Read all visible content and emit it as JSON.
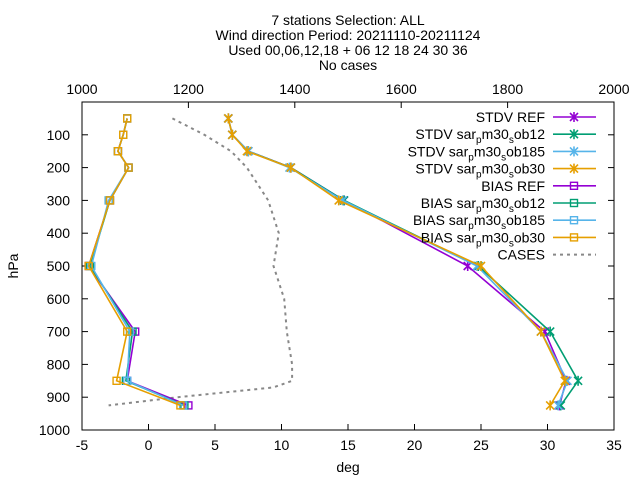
{
  "chart_data": {
    "type": "line",
    "title_lines": [
      "7 stations Selection: ALL",
      "Wind direction  Period: 20211110-20211124",
      "Used 00,06,12,18 + 06 12 18 24 30 36",
      "No cases"
    ],
    "xlabel": "deg",
    "ylabel": "hPa",
    "xlim": [
      -5,
      35
    ],
    "x_ticks": [
      "-5",
      "0",
      "5",
      "10",
      "15",
      "20",
      "25",
      "30",
      "35"
    ],
    "x2lim": [
      1000,
      2000
    ],
    "x2_ticks": [
      "1000",
      "1200",
      "1400",
      "1600",
      "1800",
      "2000"
    ],
    "ylim": [
      1000,
      0
    ],
    "y_reversed": true,
    "y_ticks": [
      "100",
      "200",
      "300",
      "400",
      "500",
      "600",
      "700",
      "800",
      "900",
      "1000"
    ],
    "grid": false,
    "legend_position": "top-right",
    "levels": [
      50,
      100,
      150,
      200,
      300,
      500,
      700,
      850,
      925
    ],
    "series": [
      {
        "name": "STDV REF",
        "legend": [
          "STDV REF"
        ],
        "color": "#9400d3",
        "marker": "x-star",
        "values": [
          6.0,
          6.3,
          7.5,
          10.7,
          14.7,
          24.0,
          29.8,
          31.4,
          30.9
        ]
      },
      {
        "name": "STDV sar_pm30_sob12",
        "legend": [
          "STDV sar",
          "p",
          "m30",
          "s",
          "ob12"
        ],
        "color": "#009e73",
        "marker": "x-star",
        "values": [
          6.0,
          6.3,
          7.5,
          10.7,
          14.7,
          24.8,
          30.2,
          32.3,
          31.0
        ]
      },
      {
        "name": "STDV sar_pm30_sob185",
        "legend": [
          "STDV sar",
          "p",
          "m30",
          "s",
          "ob185"
        ],
        "color": "#56b4e9",
        "marker": "x-star",
        "values": [
          6.0,
          6.3,
          7.5,
          10.6,
          14.6,
          24.7,
          29.5,
          31.5,
          30.8
        ]
      },
      {
        "name": "STDV sar_pm30_sob30",
        "legend": [
          "STDV sar",
          "p",
          "m30",
          "s",
          "ob30"
        ],
        "color": "#e69f00",
        "marker": "x-star",
        "values": [
          6.0,
          6.3,
          7.4,
          10.7,
          14.3,
          25.0,
          29.5,
          31.3,
          30.2
        ]
      },
      {
        "name": "BIAS REF",
        "legend": [
          "BIAS REF"
        ],
        "color": "#9400d3",
        "marker": "square",
        "values": [
          -1.6,
          -1.9,
          -2.3,
          -1.5,
          -2.9,
          -4.5,
          -1.0,
          -1.6,
          3.0
        ]
      },
      {
        "name": "BIAS sar_pm30_sob12",
        "legend": [
          "BIAS sar",
          "p",
          "m30",
          "s",
          "ob12"
        ],
        "color": "#009e73",
        "marker": "square",
        "values": [
          -1.6,
          -1.9,
          -2.3,
          -1.5,
          -2.9,
          -4.4,
          -1.2,
          -1.7,
          2.7
        ]
      },
      {
        "name": "BIAS sar_pm30_sob185",
        "legend": [
          "BIAS sar",
          "p",
          "m30",
          "s",
          "ob185"
        ],
        "color": "#56b4e9",
        "marker": "square",
        "values": [
          -1.6,
          -1.9,
          -2.3,
          -1.5,
          -3.0,
          -4.3,
          -1.4,
          -1.6,
          2.6
        ]
      },
      {
        "name": "BIAS sar_pm30_sob30",
        "legend": [
          "BIAS sar",
          "p",
          "m30",
          "s",
          "ob30"
        ],
        "color": "#e69f00",
        "marker": "square",
        "values": [
          -1.6,
          -1.9,
          -2.3,
          -1.5,
          -2.9,
          -4.5,
          -1.6,
          -2.4,
          2.4
        ]
      }
    ],
    "cases": {
      "name": "CASES",
      "color": "#888888",
      "axis": "x2",
      "levels": [
        50,
        100,
        150,
        200,
        300,
        400,
        500,
        600,
        700,
        800,
        850,
        870,
        900,
        925
      ],
      "values": [
        1170,
        1230,
        1280,
        1310,
        1350,
        1370,
        1360,
        1380,
        1385,
        1395,
        1395,
        1360,
        1180,
        1050
      ]
    }
  }
}
